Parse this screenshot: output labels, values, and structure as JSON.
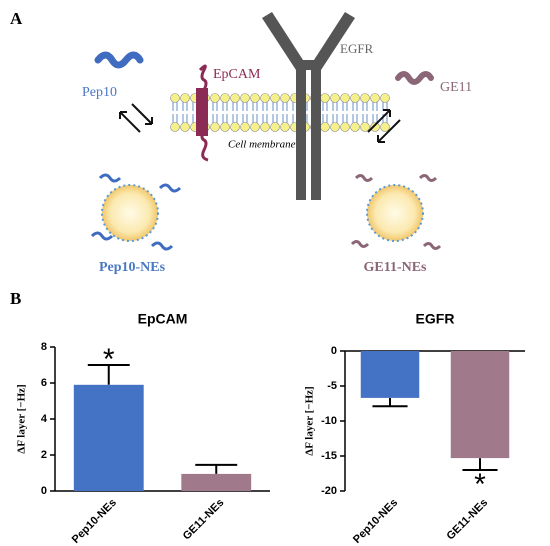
{
  "figure": {
    "panel_labels": [
      "A",
      "B"
    ],
    "diagram": {
      "pep10": "Pep10",
      "epcam": "EpCAM",
      "egfr": "EGFR",
      "ge11": "GE11",
      "membrane": "Cell membrane",
      "pep10_nes": "Pep10-NEs",
      "ge11_nes": "GE11-NEs"
    }
  },
  "chart_data": [
    {
      "type": "bar",
      "title": "EpCAM",
      "y_label": "ΔF layer [−Hz]",
      "categories": [
        "Pep10-NEs",
        "GE11-NEs"
      ],
      "values": [
        5.9,
        0.95
      ],
      "errors": [
        1.1,
        0.5
      ],
      "colors": [
        "#4472c4",
        "#a07a8a"
      ],
      "ylim": [
        0,
        8
      ],
      "yticks": [
        0,
        2,
        4,
        6,
        8
      ],
      "annotations": [
        {
          "text": "*",
          "category": "Pep10-NEs"
        }
      ]
    },
    {
      "type": "bar",
      "title": "EGFR",
      "y_label": "ΔF layer [−Hz]",
      "categories": [
        "Pep10-NEs",
        "GE11-NEs"
      ],
      "values": [
        -6.7,
        -15.3
      ],
      "errors": [
        1.2,
        1.7
      ],
      "colors": [
        "#4472c4",
        "#a07a8a"
      ],
      "ylim": [
        -20,
        0
      ],
      "yticks": [
        0,
        -5,
        -10,
        -15,
        -20
      ],
      "annotations": [
        {
          "text": "*",
          "category": "GE11-NEs"
        }
      ]
    }
  ]
}
